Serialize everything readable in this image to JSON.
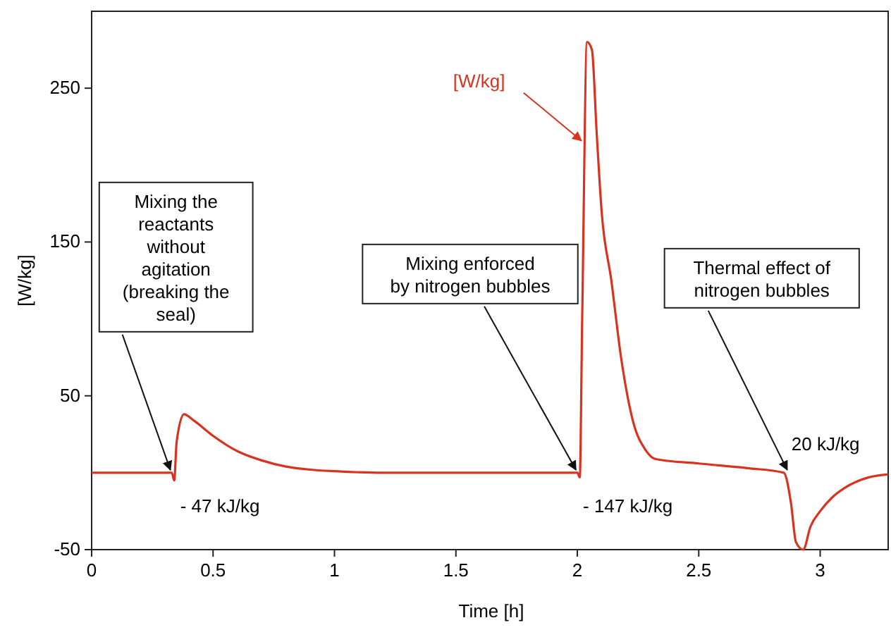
{
  "chart_data": {
    "type": "line",
    "xlabel": "Time [h]",
    "ylabel": "[W/kg]",
    "xlim": [
      0,
      3.28
    ],
    "ylim": [
      -50,
      300
    ],
    "xticks": [
      0,
      0.5,
      1,
      1.5,
      2,
      2.5,
      3
    ],
    "yticks": [
      -50,
      50,
      150,
      250
    ],
    "grid": false,
    "line_style": "solid",
    "series": [
      {
        "name": "[W/kg]",
        "color": "#d9321f",
        "x": [
          0,
          0.33,
          0.34,
          0.35,
          0.38,
          0.42,
          0.5,
          0.6,
          0.7,
          0.8,
          0.9,
          1,
          1.2,
          1.5,
          1.8,
          2,
          2.01,
          2.02,
          2.04,
          2.06,
          2.08,
          2.1,
          2.14,
          2.18,
          2.23,
          2.28,
          2.32,
          2.5,
          2.7,
          2.85,
          2.88,
          2.9,
          2.93,
          2.96,
          3,
          3.05,
          3.1,
          3.2,
          3.28
        ],
        "values": [
          0,
          0,
          -5,
          20,
          38,
          34,
          24,
          14,
          8,
          4,
          2,
          1,
          0,
          0,
          0,
          0,
          -3,
          100,
          280,
          275,
          220,
          170,
          125,
          75,
          33,
          15,
          9,
          6,
          3,
          0,
          -20,
          -45,
          -50,
          -35,
          -25,
          -16,
          -10,
          -3,
          -1
        ]
      }
    ],
    "annotations": [
      {
        "text": "Mixing the\nreactants\nwithout\nagitation\n(breaking the\nseal)",
        "x": 0.33,
        "y": 0
      },
      {
        "text": "Mixing enforced\nby nitrogen bubbles",
        "x": 2,
        "y": 0
      },
      {
        "text": "Thermal effect of\nnitrogen bubbles",
        "x": 2.87,
        "y": 0
      },
      {
        "text": "- 47 kJ/kg",
        "x": 0.33,
        "y": 0
      },
      {
        "text": "- 147 kJ/kg",
        "x": 2,
        "y": 0
      },
      {
        "text": "20 kJ/kg",
        "x": 2.87,
        "y": 0
      }
    ]
  }
}
